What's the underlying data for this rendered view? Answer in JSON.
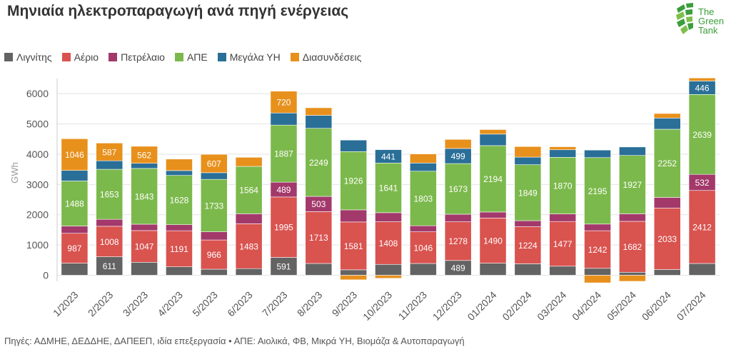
{
  "header": {
    "title": "Μηνιαία ηλεκτροπαραγωγή ανά πηγή ενέργειας"
  },
  "logo": {
    "lines": [
      "The",
      "Green",
      "Tank"
    ],
    "icon": "leaf-grid-icon",
    "color": "#3a9e3a"
  },
  "footer": {
    "source": "Πηγές: ΑΔΜΗΕ, ΔΕΔΔΗΕ, ΔΑΠΕΕΠ, ιδία επεξεργασία • ΑΠΕ: Αιολικά, ΦΒ, Μικρά ΥΗ, Βιομάζα & Αυτοπαραγωγή"
  },
  "chart_data": {
    "type": "bar",
    "stacked": true,
    "title": "Μηνιαία ηλεκτροπαραγωγή ανά πηγή ενέργειας",
    "xlabel": "",
    "ylabel": "GWh",
    "ylim": [
      -200,
      6500
    ],
    "yticks": [
      0,
      1000,
      2000,
      3000,
      4000,
      5000,
      6000
    ],
    "grid": true,
    "legend_position": "top-left",
    "categories": [
      "1/2023",
      "2/2023",
      "3/2023",
      "4/2023",
      "5/2023",
      "6/2023",
      "7/2023",
      "8/2023",
      "9/2023",
      "10/2023",
      "11/2023",
      "12/2023",
      "01/2024",
      "02/2024",
      "03/2024",
      "04/2024",
      "05/2024",
      "06/2024",
      "07/2024"
    ],
    "series": [
      {
        "name": "Λιγνίτης",
        "color": "#636363",
        "values": [
          400,
          611,
          430,
          280,
          200,
          220,
          591,
          390,
          180,
          360,
          390,
          489,
          400,
          380,
          300,
          230,
          100,
          190,
          390
        ],
        "labels": [
          "",
          "611",
          "",
          "",
          "",
          "",
          "591",
          "",
          "",
          "",
          "",
          "489",
          "",
          "",
          "",
          "",
          "",
          "",
          ""
        ]
      },
      {
        "name": "Αέριο",
        "color": "#d9534f",
        "values": [
          987,
          1008,
          1047,
          1191,
          966,
          1483,
          1995,
          1713,
          1581,
          1408,
          1046,
          1278,
          1490,
          1224,
          1477,
          1242,
          1682,
          2033,
          2412
        ],
        "labels": [
          "987",
          "1008",
          "1047",
          "1191",
          "966",
          "1483",
          "1995",
          "1713",
          "1581",
          "1408",
          "1046",
          "1278",
          "1490",
          "1224",
          "1477",
          "1242",
          "1682",
          "2033",
          "2412"
        ]
      },
      {
        "name": "Πετρέλαιο",
        "color": "#a3396b",
        "values": [
          240,
          230,
          210,
          200,
          270,
          330,
          489,
          503,
          400,
          300,
          200,
          250,
          200,
          200,
          250,
          220,
          250,
          350,
          532
        ],
        "labels": [
          "",
          "",
          "",
          "",
          "",
          "",
          "489",
          "503",
          "",
          "",
          "",
          "",
          "",
          "",
          "",
          "",
          "",
          "",
          "532"
        ]
      },
      {
        "name": "ΑΠΕ",
        "color": "#7cb94c",
        "values": [
          1488,
          1653,
          1843,
          1628,
          1733,
          1564,
          1887,
          2249,
          1926,
          1641,
          1803,
          1673,
          2194,
          1849,
          1870,
          2195,
          1927,
          2252,
          2639
        ],
        "labels": [
          "1488",
          "1653",
          "1843",
          "1628",
          "1733",
          "1564",
          "1887",
          "2249",
          "1926",
          "1641",
          "1803",
          "1673",
          "2194",
          "1849",
          "1870",
          "2195",
          "1927",
          "2252",
          "2639"
        ]
      },
      {
        "name": "Μεγάλα ΥΗ",
        "color": "#2a6f97",
        "values": [
          350,
          280,
          170,
          160,
          220,
          0,
          400,
          430,
          380,
          441,
          270,
          499,
          380,
          250,
          250,
          250,
          280,
          370,
          446
        ],
        "labels": [
          "",
          "",
          "",
          "",
          "",
          "",
          "",
          "",
          "",
          "441",
          "",
          "499",
          "",
          "",
          "",
          "",
          "",
          "",
          "446"
        ]
      },
      {
        "name": "Διασυνδέσεις",
        "color": "#e8901c",
        "values": [
          1046,
          587,
          562,
          380,
          607,
          300,
          720,
          250,
          -150,
          -100,
          300,
          300,
          150,
          350,
          100,
          -250,
          -200,
          150,
          100
        ],
        "labels": [
          "1046",
          "587",
          "562",
          "",
          "607",
          "",
          "720",
          "",
          "",
          "",
          "",
          "",
          "",
          "",
          "",
          "",
          "",
          "",
          ""
        ]
      }
    ]
  }
}
